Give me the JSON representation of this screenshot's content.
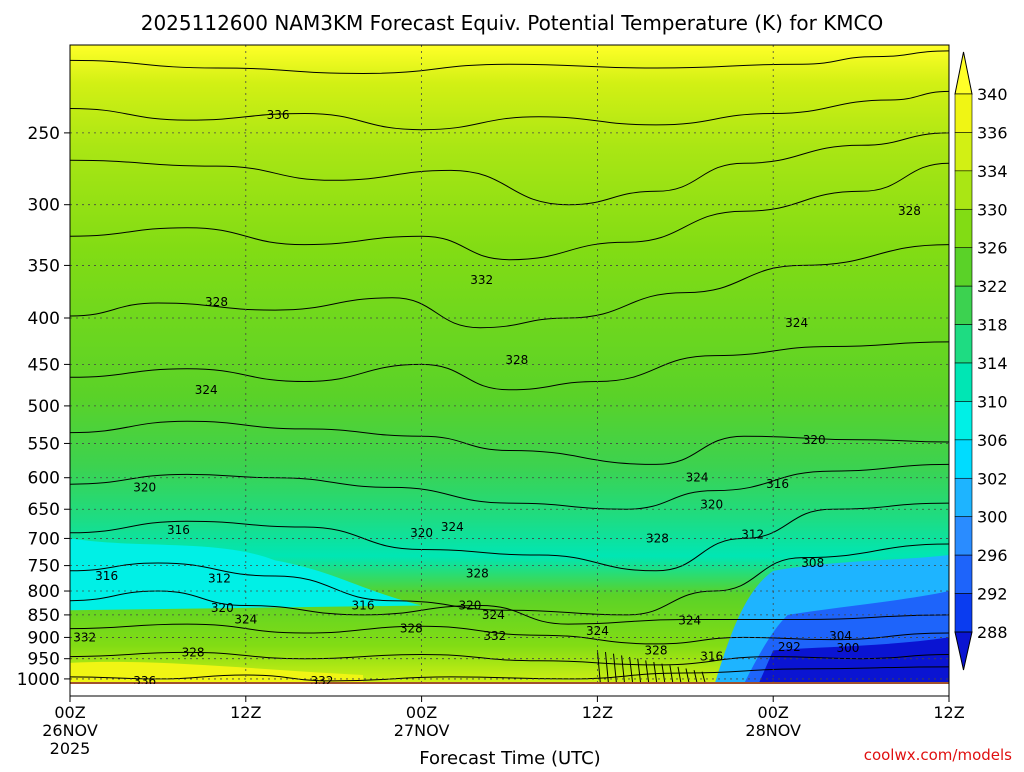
{
  "chart_data": {
    "type": "heatmap",
    "title": "2025112600 NAM3KM Forecast Equiv. Potential Temperature (K) for KMCO",
    "xlabel": "Forecast Time (UTC)",
    "ylabel": "",
    "source": "coolwx.com/models",
    "x_ticks": [
      {
        "hour": 0,
        "time": "00Z",
        "date": "26NOV",
        "year": "2025"
      },
      {
        "hour": 12,
        "time": "12Z",
        "date": "",
        "year": ""
      },
      {
        "hour": 24,
        "time": "00Z",
        "date": "27NOV",
        "year": ""
      },
      {
        "hour": 36,
        "time": "12Z",
        "date": "",
        "year": ""
      },
      {
        "hour": 48,
        "time": "00Z",
        "date": "28NOV",
        "year": ""
      },
      {
        "hour": 60,
        "time": "12Z",
        "date": "",
        "year": ""
      }
    ],
    "xlim": [
      0,
      60
    ],
    "y_ticks": [
      250,
      300,
      350,
      400,
      450,
      500,
      550,
      600,
      650,
      700,
      750,
      800,
      850,
      900,
      950,
      1000
    ],
    "ylim": [
      200,
      1013
    ],
    "y_scale": "log-pressure",
    "colorbar": {
      "levels": [
        288,
        292,
        296,
        300,
        302,
        306,
        310,
        314,
        318,
        322,
        326,
        330,
        334,
        336,
        340
      ],
      "colors": [
        "#0a14d2",
        "#0a3cf0",
        "#1e64fa",
        "#2a8cff",
        "#1eb4ff",
        "#00dcff",
        "#00f0e6",
        "#00e6b4",
        "#1edc82",
        "#3cd250",
        "#5ad228",
        "#82dc14",
        "#aae614",
        "#d2f014",
        "#f0f514",
        "#ffff28"
      ]
    },
    "contour_interval": 4,
    "contour_labels": [
      {
        "value": "336",
        "hour": 14.2,
        "p": 239
      },
      {
        "value": "332",
        "hour": 28.1,
        "p": 363
      },
      {
        "value": "328",
        "hour": 57.3,
        "p": 305
      },
      {
        "value": "328",
        "hour": 10.0,
        "p": 384
      },
      {
        "value": "324",
        "hour": 49.6,
        "p": 405
      },
      {
        "value": "328",
        "hour": 30.5,
        "p": 445
      },
      {
        "value": "324",
        "hour": 9.3,
        "p": 480
      },
      {
        "value": "320",
        "hour": 50.8,
        "p": 545
      },
      {
        "value": "324",
        "hour": 42.8,
        "p": 600
      },
      {
        "value": "316",
        "hour": 48.3,
        "p": 610
      },
      {
        "value": "320",
        "hour": 5.1,
        "p": 615
      },
      {
        "value": "320",
        "hour": 43.8,
        "p": 642
      },
      {
        "value": "316",
        "hour": 7.4,
        "p": 685
      },
      {
        "value": "320",
        "hour": 24.0,
        "p": 690
      },
      {
        "value": "324",
        "hour": 26.1,
        "p": 680
      },
      {
        "value": "312",
        "hour": 46.6,
        "p": 693
      },
      {
        "value": "328",
        "hour": 40.1,
        "p": 700
      },
      {
        "value": "308",
        "hour": 50.7,
        "p": 745
      },
      {
        "value": "328",
        "hour": 27.8,
        "p": 765
      },
      {
        "value": "316",
        "hour": 2.5,
        "p": 770
      },
      {
        "value": "312",
        "hour": 10.2,
        "p": 775
      },
      {
        "value": "320",
        "hour": 10.4,
        "p": 835
      },
      {
        "value": "320",
        "hour": 27.3,
        "p": 830
      },
      {
        "value": "316",
        "hour": 20.0,
        "p": 830
      },
      {
        "value": "324",
        "hour": 28.9,
        "p": 850
      },
      {
        "value": "324",
        "hour": 12.0,
        "p": 860
      },
      {
        "value": "324",
        "hour": 42.3,
        "p": 862
      },
      {
        "value": "328",
        "hour": 23.3,
        "p": 880
      },
      {
        "value": "324",
        "hour": 36.0,
        "p": 885
      },
      {
        "value": "332",
        "hour": 1.0,
        "p": 900
      },
      {
        "value": "332",
        "hour": 29.0,
        "p": 897
      },
      {
        "value": "304",
        "hour": 52.6,
        "p": 897
      },
      {
        "value": "292",
        "hour": 49.1,
        "p": 922
      },
      {
        "value": "300",
        "hour": 53.1,
        "p": 925
      },
      {
        "value": "328",
        "hour": 40.0,
        "p": 930
      },
      {
        "value": "316",
        "hour": 43.8,
        "p": 945
      },
      {
        "value": "328",
        "hour": 8.4,
        "p": 935
      },
      {
        "value": "336",
        "hour": 5.1,
        "p": 1005
      },
      {
        "value": "332",
        "hour": 17.2,
        "p": 1005
      }
    ]
  }
}
